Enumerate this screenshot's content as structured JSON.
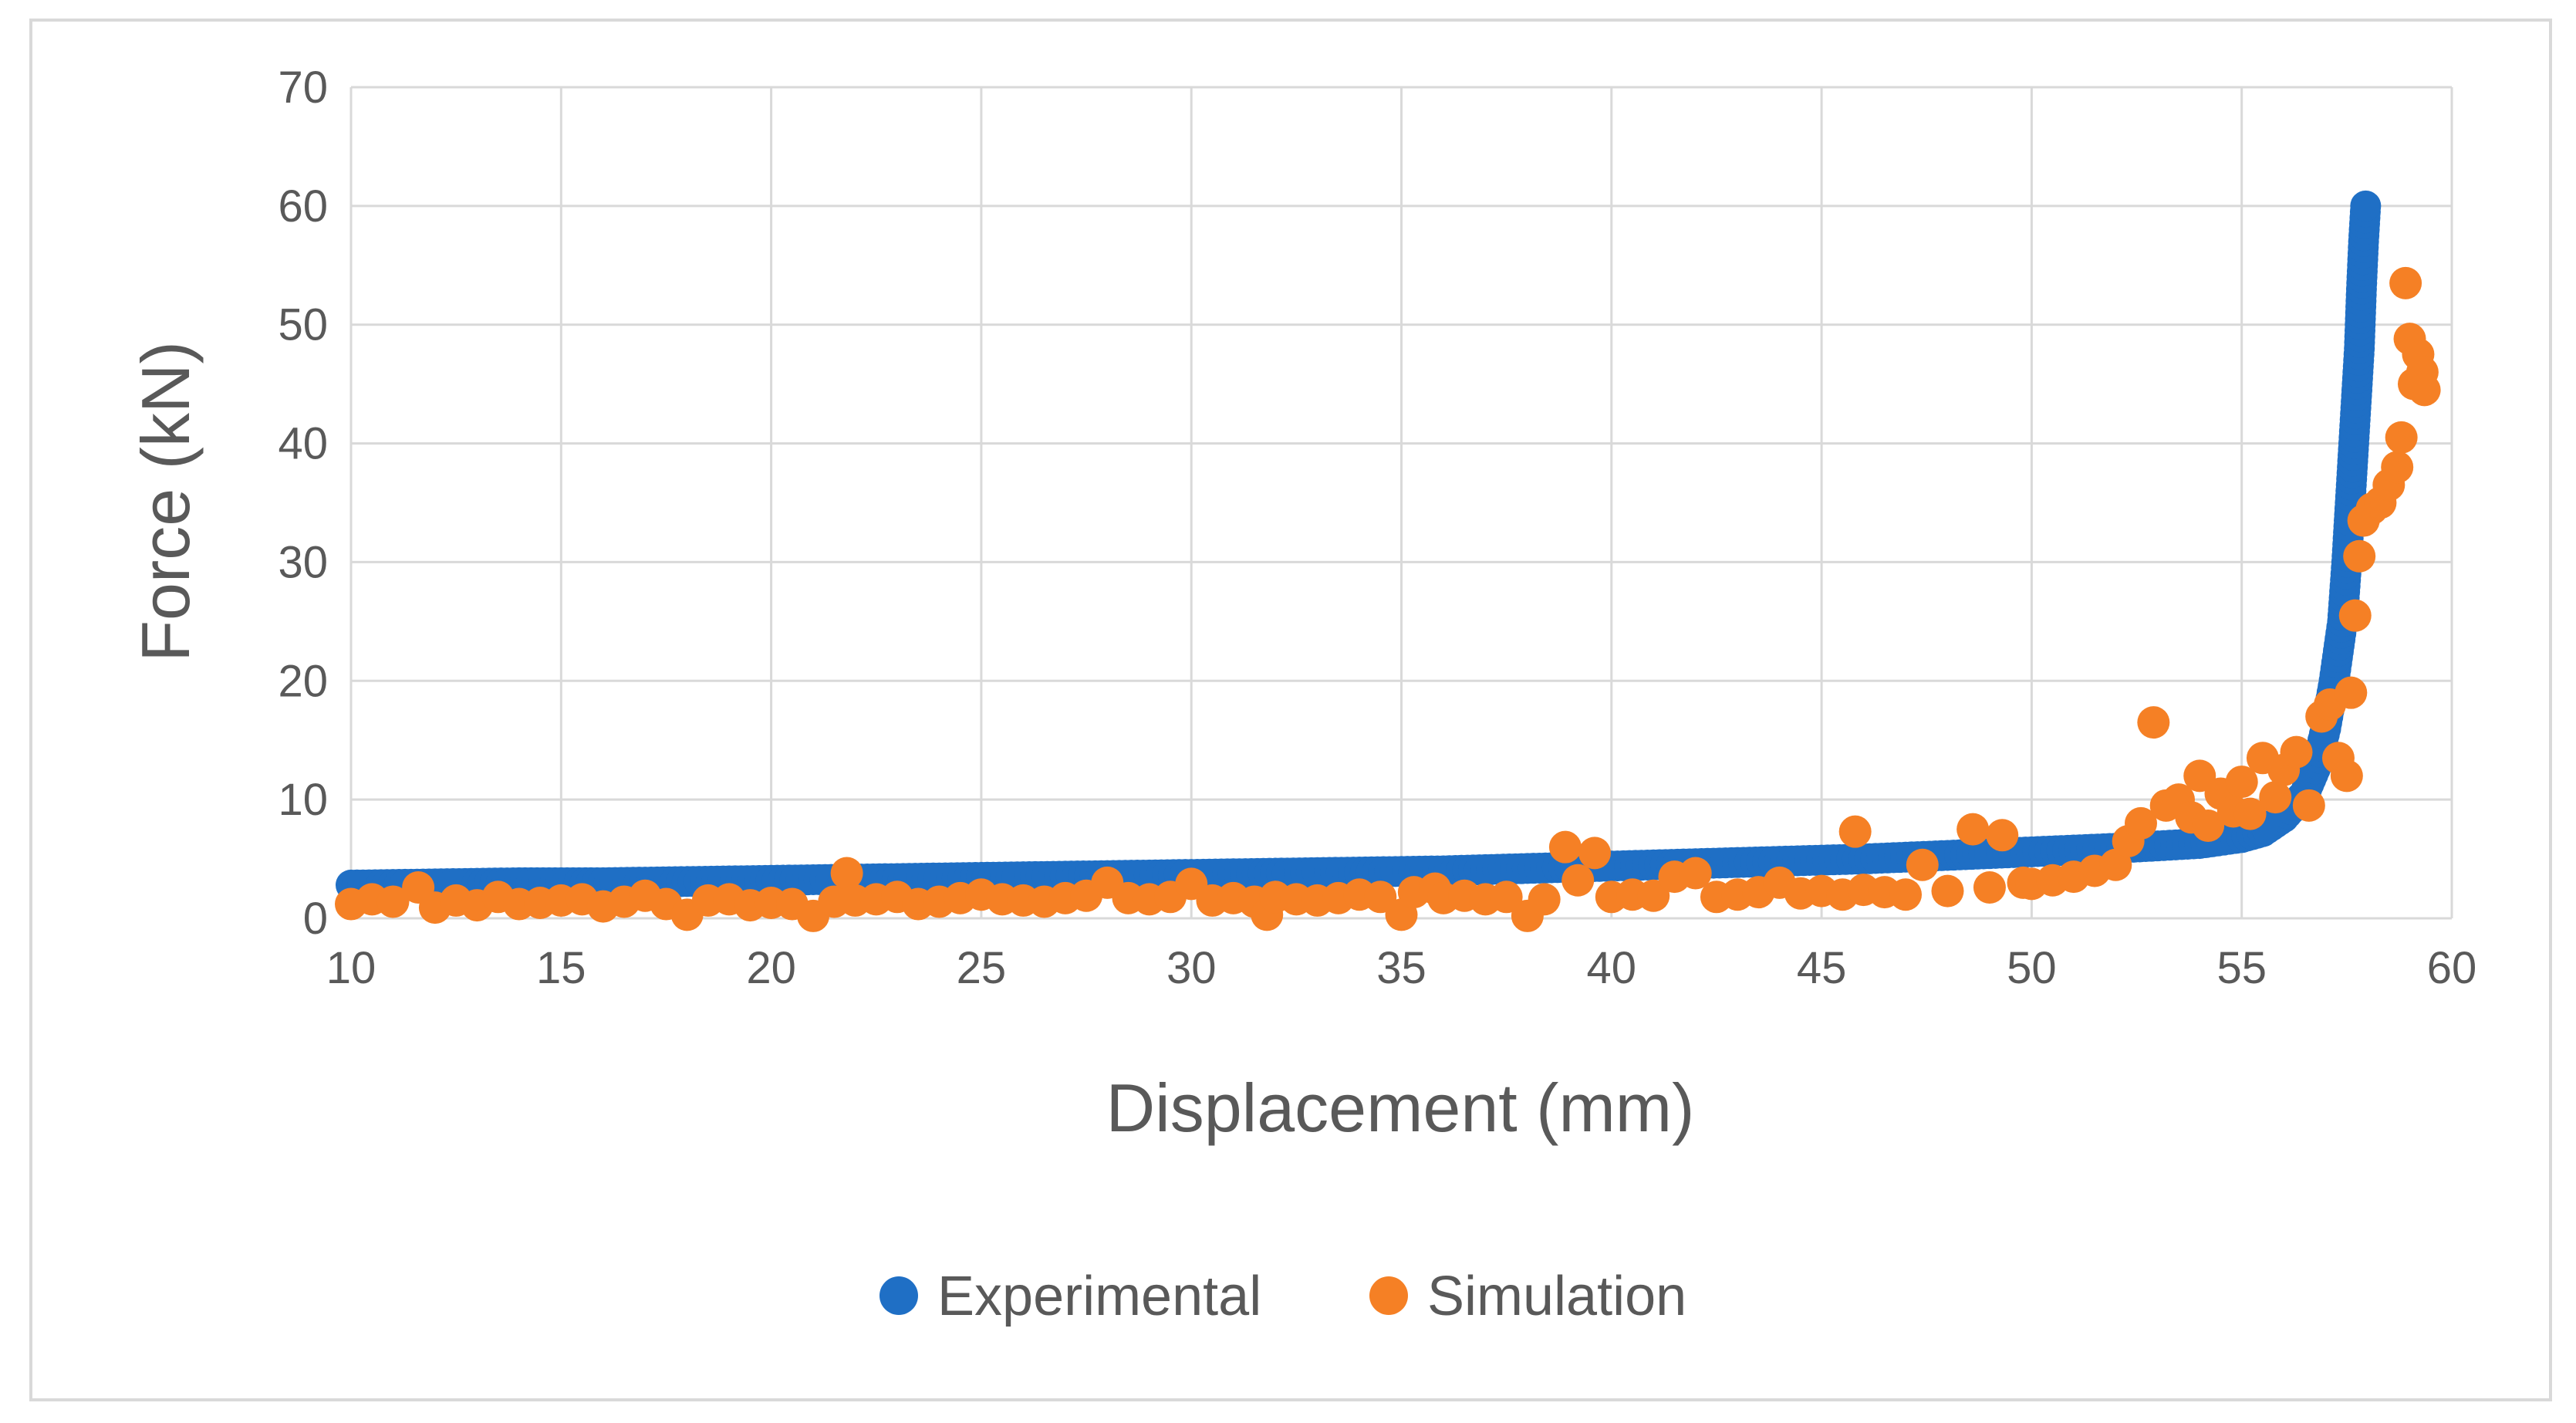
{
  "chart_data": {
    "type": "scatter",
    "title": "",
    "xlabel": "Displacement (mm)",
    "ylabel": "Force (kN)",
    "xlim": [
      10,
      60
    ],
    "ylim": [
      0,
      70
    ],
    "xticks": [
      10,
      15,
      20,
      25,
      30,
      35,
      40,
      45,
      50,
      55,
      60
    ],
    "yticks": [
      0,
      10,
      20,
      30,
      40,
      50,
      60,
      70
    ],
    "grid": true,
    "legend_position": "bottom",
    "series": [
      {
        "name": "Experimental",
        "color": "#1f6fc5",
        "points": [
          [
            10,
            2.8
          ],
          [
            12,
            2.9
          ],
          [
            14,
            3.0
          ],
          [
            16,
            3.0
          ],
          [
            18,
            3.1
          ],
          [
            20,
            3.2
          ],
          [
            22,
            3.3
          ],
          [
            24,
            3.4
          ],
          [
            26,
            3.5
          ],
          [
            28,
            3.6
          ],
          [
            30,
            3.7
          ],
          [
            32,
            3.8
          ],
          [
            34,
            3.9
          ],
          [
            36,
            4.0
          ],
          [
            38,
            4.2
          ],
          [
            40,
            4.4
          ],
          [
            42,
            4.6
          ],
          [
            44,
            4.8
          ],
          [
            46,
            5.0
          ],
          [
            48,
            5.3
          ],
          [
            50,
            5.6
          ],
          [
            52,
            5.9
          ],
          [
            53,
            6.1
          ],
          [
            54,
            6.3
          ],
          [
            55,
            6.8
          ],
          [
            55.5,
            7.3
          ],
          [
            56,
            8.5
          ],
          [
            56.5,
            10.5
          ],
          [
            56.8,
            13
          ],
          [
            57,
            16
          ],
          [
            57.2,
            20
          ],
          [
            57.4,
            25
          ],
          [
            57.5,
            30
          ],
          [
            57.6,
            36
          ],
          [
            57.7,
            42
          ],
          [
            57.8,
            48
          ],
          [
            57.85,
            53
          ],
          [
            57.9,
            57
          ],
          [
            57.95,
            60
          ]
        ]
      },
      {
        "name": "Simulation",
        "color": "#f58025",
        "points": [
          [
            10,
            1.2
          ],
          [
            10.5,
            1.6
          ],
          [
            11,
            1.4
          ],
          [
            11.6,
            2.6
          ],
          [
            12,
            0.9
          ],
          [
            12.5,
            1.5
          ],
          [
            13,
            1.1
          ],
          [
            13.5,
            1.8
          ],
          [
            14,
            1.2
          ],
          [
            14.5,
            1.3
          ],
          [
            15,
            1.5
          ],
          [
            15.5,
            1.6
          ],
          [
            16,
            1.0
          ],
          [
            16.5,
            1.4
          ],
          [
            17,
            1.9
          ],
          [
            17.5,
            1.2
          ],
          [
            18,
            0.3
          ],
          [
            18.5,
            1.5
          ],
          [
            19,
            1.6
          ],
          [
            19.5,
            1.1
          ],
          [
            20,
            1.3
          ],
          [
            20.5,
            1.2
          ],
          [
            21,
            0.2
          ],
          [
            21.5,
            1.4
          ],
          [
            21.8,
            3.8
          ],
          [
            22,
            1.5
          ],
          [
            22.5,
            1.6
          ],
          [
            23,
            1.8
          ],
          [
            23.5,
            1.2
          ],
          [
            24,
            1.4
          ],
          [
            24.5,
            1.7
          ],
          [
            25,
            2.0
          ],
          [
            25.5,
            1.6
          ],
          [
            26,
            1.5
          ],
          [
            26.5,
            1.4
          ],
          [
            27,
            1.7
          ],
          [
            27.5,
            1.9
          ],
          [
            28,
            3.0
          ],
          [
            28.5,
            1.7
          ],
          [
            29,
            1.6
          ],
          [
            29.5,
            1.8
          ],
          [
            30,
            2.9
          ],
          [
            30.5,
            1.5
          ],
          [
            31,
            1.7
          ],
          [
            31.5,
            1.4
          ],
          [
            31.8,
            0.3
          ],
          [
            32,
            1.8
          ],
          [
            32.5,
            1.6
          ],
          [
            33,
            1.5
          ],
          [
            33.5,
            1.7
          ],
          [
            34,
            2.0
          ],
          [
            34.5,
            1.8
          ],
          [
            35,
            0.3
          ],
          [
            35.3,
            2.2
          ],
          [
            35.8,
            2.5
          ],
          [
            36,
            1.7
          ],
          [
            36.5,
            1.9
          ],
          [
            37,
            1.6
          ],
          [
            37.5,
            1.8
          ],
          [
            38,
            0.2
          ],
          [
            38.4,
            1.6
          ],
          [
            38.9,
            6.0
          ],
          [
            39.2,
            3.2
          ],
          [
            39.6,
            5.5
          ],
          [
            40,
            1.8
          ],
          [
            40.5,
            2.0
          ],
          [
            41,
            1.9
          ],
          [
            41.5,
            3.5
          ],
          [
            42,
            3.8
          ],
          [
            42.5,
            1.8
          ],
          [
            43,
            2.0
          ],
          [
            43.5,
            2.2
          ],
          [
            44,
            3.0
          ],
          [
            44.5,
            2.1
          ],
          [
            45,
            2.3
          ],
          [
            45.5,
            2.0
          ],
          [
            45.8,
            7.3
          ],
          [
            46,
            2.4
          ],
          [
            46.5,
            2.2
          ],
          [
            47,
            2.0
          ],
          [
            47.4,
            4.5
          ],
          [
            48,
            2.3
          ],
          [
            48.6,
            7.5
          ],
          [
            49,
            2.6
          ],
          [
            49.3,
            7.0
          ],
          [
            49.8,
            3.0
          ],
          [
            50,
            2.9
          ],
          [
            50.5,
            3.2
          ],
          [
            51,
            3.5
          ],
          [
            51.5,
            4.0
          ],
          [
            52,
            4.5
          ],
          [
            52.3,
            6.5
          ],
          [
            52.6,
            8.0
          ],
          [
            52.9,
            16.5
          ],
          [
            53.2,
            9.5
          ],
          [
            53.5,
            10.0
          ],
          [
            53.8,
            8.5
          ],
          [
            54,
            12.0
          ],
          [
            54.2,
            7.8
          ],
          [
            54.5,
            10.5
          ],
          [
            54.8,
            9.0
          ],
          [
            55,
            11.5
          ],
          [
            55.2,
            8.8
          ],
          [
            55.5,
            13.5
          ],
          [
            55.8,
            10.2
          ],
          [
            56,
            12.5
          ],
          [
            56.3,
            14.0
          ],
          [
            56.6,
            9.5
          ],
          [
            56.9,
            17.0
          ],
          [
            57.1,
            18.0
          ],
          [
            57.3,
            13.5
          ],
          [
            57.5,
            12.0
          ],
          [
            57.6,
            19.0
          ],
          [
            57.7,
            25.5
          ],
          [
            57.8,
            30.5
          ],
          [
            57.9,
            33.5
          ],
          [
            58.1,
            34.5
          ],
          [
            58.3,
            35.0
          ],
          [
            58.5,
            36.5
          ],
          [
            58.7,
            38.0
          ],
          [
            58.8,
            40.5
          ],
          [
            58.9,
            53.5
          ],
          [
            59.0,
            48.8
          ],
          [
            59.1,
            45.0
          ],
          [
            59.2,
            47.5
          ],
          [
            59.3,
            46.0
          ],
          [
            59.35,
            44.5
          ]
        ]
      }
    ]
  }
}
